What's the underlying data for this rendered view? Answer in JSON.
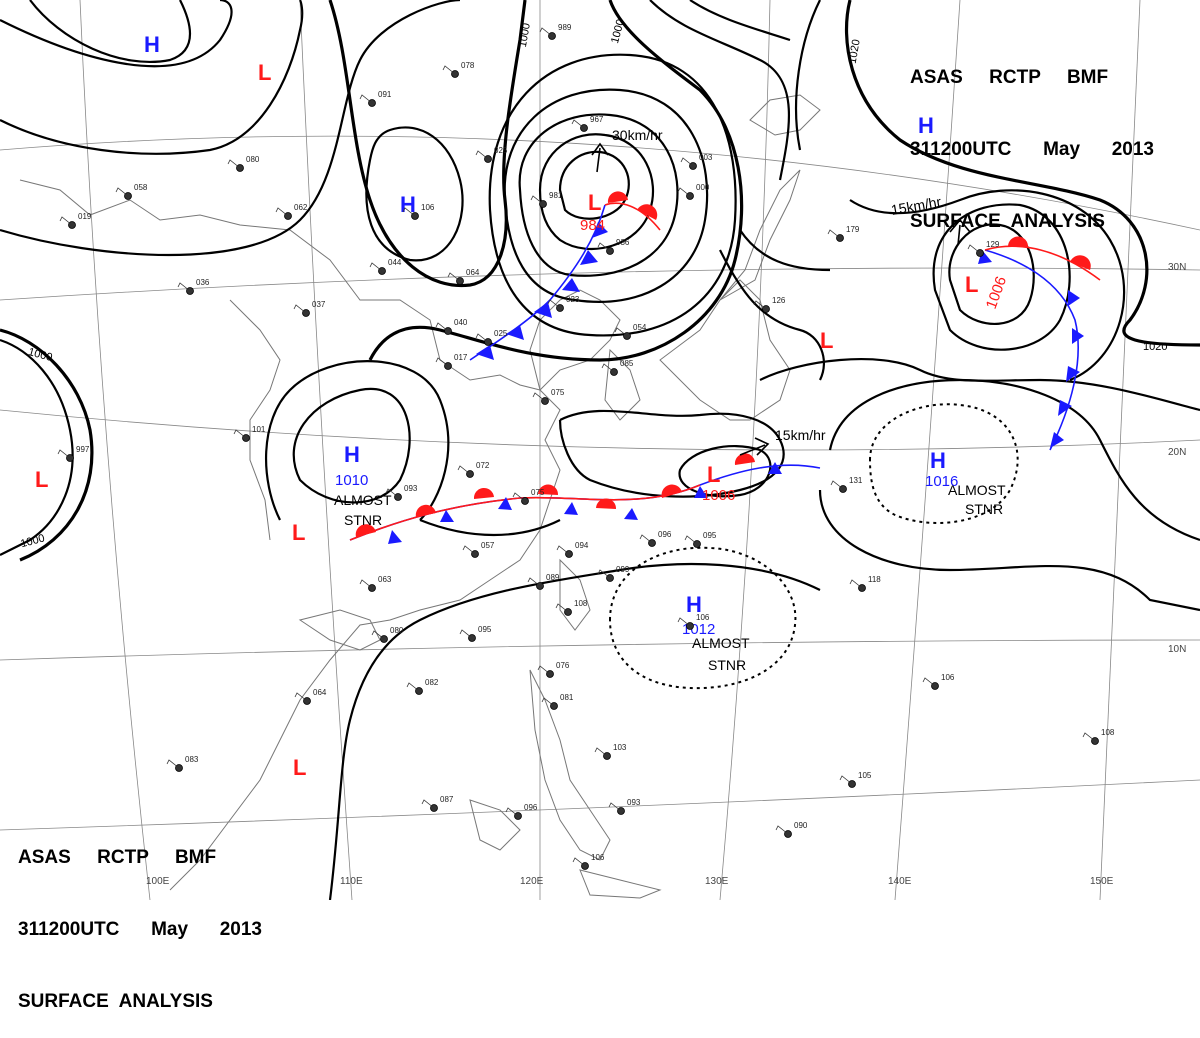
{
  "header": {
    "line1": "ASAS     RCTP     BMF",
    "line2": "311200UTC      May      2013",
    "line3": "SURFACE  ANALYSIS"
  },
  "isobar_labels": {
    "l1000a": "1000",
    "l1000b": "1000",
    "l1000c": "1000",
    "l1000d": "1000",
    "l1020a": "1020",
    "l1020b": "1020"
  },
  "pressure_centers": [
    {
      "type": "H",
      "label": "H",
      "value": ""
    },
    {
      "type": "L",
      "label": "L",
      "value": ""
    },
    {
      "type": "H",
      "label": "H",
      "value": ""
    },
    {
      "type": "L",
      "label": "L",
      "value": "984"
    },
    {
      "type": "H",
      "label": "H",
      "value": ""
    },
    {
      "type": "L",
      "label": "L",
      "value": "1006"
    },
    {
      "type": "L",
      "label": "L",
      "value": ""
    },
    {
      "type": "H",
      "label": "H",
      "value": "1010"
    },
    {
      "type": "L",
      "label": "L",
      "value": ""
    },
    {
      "type": "L",
      "label": "L",
      "value": ""
    },
    {
      "type": "L",
      "label": "L",
      "value": "1006"
    },
    {
      "type": "H",
      "label": "H",
      "value": "1016"
    },
    {
      "type": "H",
      "label": "H",
      "value": "1012"
    },
    {
      "type": "L",
      "label": "L",
      "value": ""
    }
  ],
  "motions": {
    "m1": "30km/hr",
    "m2": "15km/hr",
    "m3": "15km/hr"
  },
  "annotations": {
    "stnr1a": "ALMOST",
    "stnr1b": "STNR",
    "stnr2a": "ALMOST",
    "stnr2b": "STNR",
    "stnr3a": "ALMOST",
    "stnr3b": "STNR"
  },
  "longitudes": {
    "e100": "100E",
    "e110": "110E",
    "e120": "120E",
    "e130": "130E",
    "e140": "140E",
    "e150": "150E"
  },
  "latitudes": {
    "n10": "10N",
    "n20": "20N",
    "n30": "30N"
  },
  "stations": [
    {
      "id": "s1",
      "text": "989"
    },
    {
      "id": "s2",
      "text": "078"
    },
    {
      "id": "s3",
      "text": "091"
    },
    {
      "id": "s4",
      "text": "080"
    },
    {
      "id": "s5",
      "text": "058"
    },
    {
      "id": "s6",
      "text": "062"
    },
    {
      "id": "s7",
      "text": "019"
    },
    {
      "id": "s8",
      "text": "025"
    },
    {
      "id": "s9",
      "text": "106"
    },
    {
      "id": "s10",
      "text": "044"
    },
    {
      "id": "s11",
      "text": "036"
    },
    {
      "id": "s12",
      "text": "037"
    },
    {
      "id": "s13",
      "text": "064"
    },
    {
      "id": "s14",
      "text": "040"
    },
    {
      "id": "s15",
      "text": "025"
    },
    {
      "id": "s16",
      "text": "017"
    },
    {
      "id": "s17",
      "text": "967"
    },
    {
      "id": "s18",
      "text": "981"
    },
    {
      "id": "s19",
      "text": "936"
    },
    {
      "id": "s20",
      "text": "023"
    },
    {
      "id": "s21",
      "text": "054"
    },
    {
      "id": "s22",
      "text": "085"
    },
    {
      "id": "s23",
      "text": "075"
    },
    {
      "id": "s24",
      "text": "000"
    },
    {
      "id": "s25",
      "text": "003"
    },
    {
      "id": "s26",
      "text": "126"
    },
    {
      "id": "s27",
      "text": "179"
    },
    {
      "id": "s28",
      "text": "101"
    },
    {
      "id": "s29",
      "text": "997"
    },
    {
      "id": "s30",
      "text": "072"
    },
    {
      "id": "s31",
      "text": "093"
    },
    {
      "id": "s32",
      "text": "075"
    },
    {
      "id": "s33",
      "text": "057"
    },
    {
      "id": "s34",
      "text": "094"
    },
    {
      "id": "s35",
      "text": "096"
    },
    {
      "id": "s36",
      "text": "095"
    },
    {
      "id": "s37",
      "text": "099"
    },
    {
      "id": "s38",
      "text": "089"
    },
    {
      "id": "s39",
      "text": "108"
    },
    {
      "id": "s40",
      "text": "063"
    },
    {
      "id": "s41",
      "text": "080"
    },
    {
      "id": "s42",
      "text": "095"
    },
    {
      "id": "s43",
      "text": "082"
    },
    {
      "id": "s44",
      "text": "064"
    },
    {
      "id": "s45",
      "text": "083"
    },
    {
      "id": "s46",
      "text": "087"
    },
    {
      "id": "s47",
      "text": "096"
    },
    {
      "id": "s48",
      "text": "106"
    },
    {
      "id": "s49",
      "text": "093"
    },
    {
      "id": "s50",
      "text": "103"
    },
    {
      "id": "s51",
      "text": "076"
    },
    {
      "id": "s52",
      "text": "081"
    },
    {
      "id": "s53",
      "text": "118"
    },
    {
      "id": "s54",
      "text": "131"
    },
    {
      "id": "s55",
      "text": "106"
    },
    {
      "id": "s56",
      "text": "105"
    },
    {
      "id": "s57",
      "text": "090"
    },
    {
      "id": "s58",
      "text": "108"
    },
    {
      "id": "s59",
      "text": "106"
    },
    {
      "id": "s60",
      "text": "129"
    }
  ]
}
